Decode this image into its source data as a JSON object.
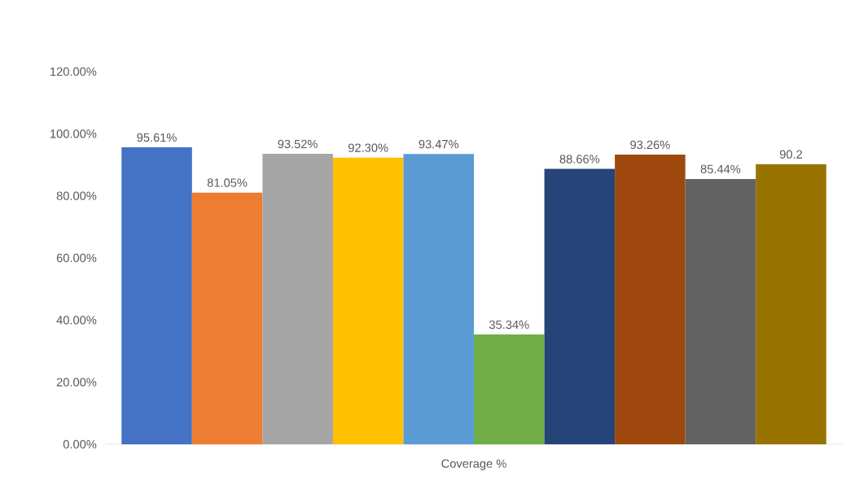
{
  "chart_data": {
    "type": "bar",
    "categories": [
      "Coverage %"
    ],
    "series": [
      {
        "color": "#4472c4",
        "values": [
          95.61
        ],
        "value_labels": [
          "95.61%"
        ]
      },
      {
        "color": "#ed7d31",
        "values": [
          81.05
        ],
        "value_labels": [
          "81.05%"
        ]
      },
      {
        "color": "#a5a5a5",
        "values": [
          93.52
        ],
        "value_labels": [
          "93.52%"
        ]
      },
      {
        "color": "#ffc000",
        "values": [
          92.3
        ],
        "value_labels": [
          "92.30%"
        ]
      },
      {
        "color": "#5b9bd5",
        "values": [
          93.47
        ],
        "value_labels": [
          "93.47%"
        ]
      },
      {
        "color": "#70ad47",
        "values": [
          35.34
        ],
        "value_labels": [
          "35.34%"
        ]
      },
      {
        "color": "#264478",
        "values": [
          88.66
        ],
        "value_labels": [
          "88.66%"
        ]
      },
      {
        "color": "#9e480e",
        "values": [
          93.26
        ],
        "value_labels": [
          "93.26%"
        ]
      },
      {
        "color": "#636363",
        "values": [
          85.44
        ],
        "value_labels": [
          "85.44%"
        ]
      },
      {
        "color": "#997300",
        "values": [
          90.2
        ],
        "value_labels": [
          "90.2"
        ]
      }
    ],
    "ylim": [
      0,
      120
    ],
    "yticks": [
      {
        "value": 0,
        "label": "0.00%"
      },
      {
        "value": 20,
        "label": "20.00%"
      },
      {
        "value": 40,
        "label": "40.00%"
      },
      {
        "value": 60,
        "label": "60.00%"
      },
      {
        "value": 80,
        "label": "80.00%"
      },
      {
        "value": 100,
        "label": "100.00%"
      },
      {
        "value": 120,
        "label": "120.00%"
      }
    ]
  }
}
